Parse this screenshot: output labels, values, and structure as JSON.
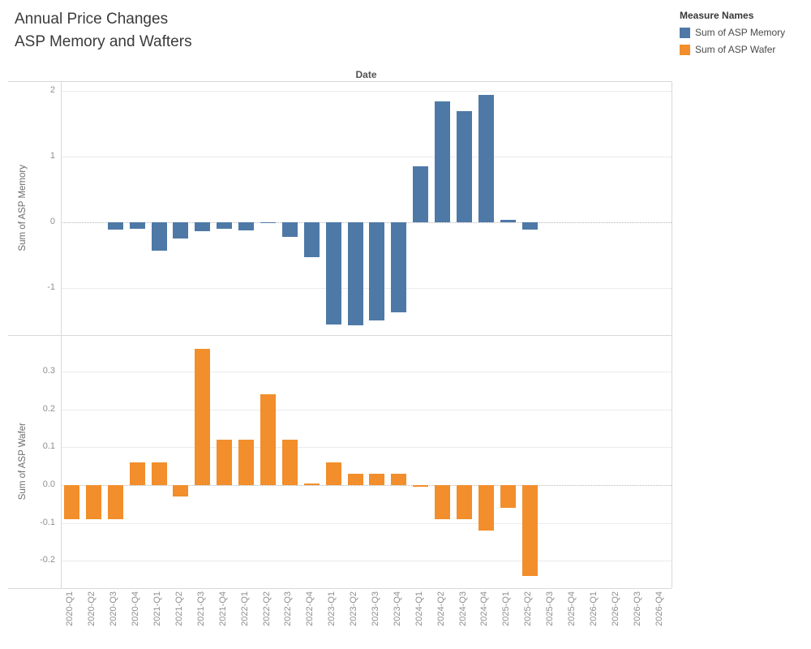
{
  "title": {
    "line1": "Annual Price Changes",
    "line2": "ASP Memory and Wafters"
  },
  "legend": {
    "title": "Measure Names",
    "items": [
      {
        "label": "Sum of ASP Memory",
        "color": "#4e79a7"
      },
      {
        "label": "Sum of ASP Wafer",
        "color": "#f28e2b"
      }
    ]
  },
  "axis_header": "Date",
  "colors": {
    "memory": "#4e79a7",
    "wafer": "#f28e2b",
    "border": "#d9d9d9",
    "grid": "#ebebeb",
    "tick_text": "#8f8f8f"
  },
  "chart_data": {
    "type": "bar",
    "xlabel": "Date",
    "grid": true,
    "legend_position": "top-right",
    "categories": [
      "2020-Q1",
      "2020-Q2",
      "2020-Q3",
      "2020-Q4",
      "2021-Q1",
      "2021-Q2",
      "2021-Q3",
      "2021-Q4",
      "2022-Q1",
      "2022-Q2",
      "2022-Q3",
      "2022-Q4",
      "2023-Q1",
      "2023-Q2",
      "2023-Q3",
      "2023-Q4",
      "2024-Q1",
      "2024-Q2",
      "2024-Q3",
      "2024-Q4",
      "2025-Q1",
      "2025-Q2",
      "2025-Q3",
      "2025-Q4",
      "2026-Q1",
      "2026-Q2",
      "2026-Q3",
      "2026-Q4"
    ],
    "panels": [
      {
        "name": "Sum of ASP Memory",
        "ylabel": "Sum of ASP Memory",
        "color": "#4e79a7",
        "ylim": [
          -1.72,
          2.15
        ],
        "ticks": [
          2,
          1,
          0,
          -1
        ],
        "tick_labels": [
          "2",
          "1",
          "0",
          "-1"
        ],
        "values": [
          null,
          null,
          -0.11,
          -0.1,
          -0.43,
          -0.25,
          -0.14,
          -0.1,
          -0.13,
          -0.01,
          -0.23,
          -0.53,
          -1.56,
          -1.57,
          -1.5,
          -1.37,
          0.85,
          1.84,
          1.69,
          1.94,
          0.04,
          -0.11,
          null,
          null,
          null,
          null,
          null,
          null
        ]
      },
      {
        "name": "Sum of ASP Wafer",
        "ylabel": "Sum of ASP Wafer",
        "color": "#f28e2b",
        "ylim": [
          -0.272,
          0.396
        ],
        "ticks": [
          0.3,
          0.2,
          0.1,
          0.0,
          -0.1,
          -0.2
        ],
        "tick_labels": [
          "0.3",
          "0.2",
          "0.1",
          "0.0",
          "-0.1",
          "-0.2"
        ],
        "values": [
          -0.09,
          -0.09,
          -0.09,
          0.06,
          0.06,
          -0.03,
          0.36,
          0.12,
          0.12,
          0.24,
          0.12,
          0.005,
          0.06,
          0.03,
          0.03,
          0.03,
          -0.005,
          -0.09,
          -0.09,
          -0.12,
          -0.06,
          -0.24,
          null,
          null,
          null,
          null,
          null,
          null
        ]
      }
    ]
  }
}
